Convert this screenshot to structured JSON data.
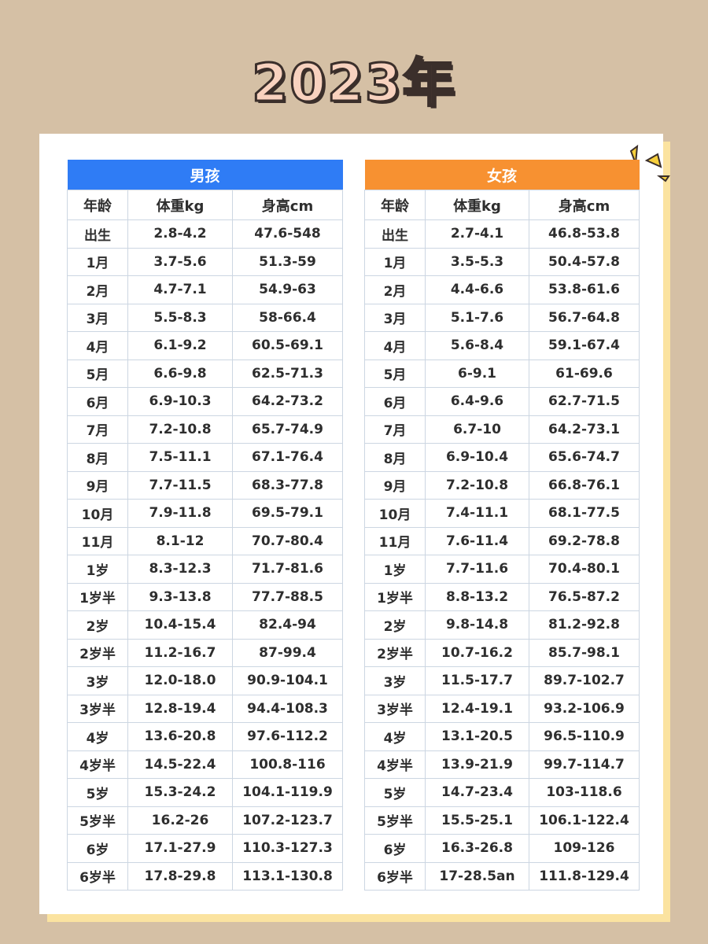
{
  "title": "2023年",
  "tables": [
    {
      "title": "男孩",
      "columns": [
        "年龄",
        "体重kg",
        "身高cm"
      ],
      "rows": [
        [
          "出生",
          "2.8-4.2",
          "47.6-548"
        ],
        [
          "1月",
          "3.7-5.6",
          "51.3-59"
        ],
        [
          "2月",
          "4.7-7.1",
          "54.9-63"
        ],
        [
          "3月",
          "5.5-8.3",
          "58-66.4"
        ],
        [
          "4月",
          "6.1-9.2",
          "60.5-69.1"
        ],
        [
          "5月",
          "6.6-9.8",
          "62.5-71.3"
        ],
        [
          "6月",
          "6.9-10.3",
          "64.2-73.2"
        ],
        [
          "7月",
          "7.2-10.8",
          "65.7-74.9"
        ],
        [
          "8月",
          "7.5-11.1",
          "67.1-76.4"
        ],
        [
          "9月",
          "7.7-11.5",
          "68.3-77.8"
        ],
        [
          "10月",
          "7.9-11.8",
          "69.5-79.1"
        ],
        [
          "11月",
          "8.1-12",
          "70.7-80.4"
        ],
        [
          "1岁",
          "8.3-12.3",
          "71.7-81.6"
        ],
        [
          "1岁半",
          "9.3-13.8",
          "77.7-88.5"
        ],
        [
          "2岁",
          "10.4-15.4",
          "82.4-94"
        ],
        [
          "2岁半",
          "11.2-16.7",
          "87-99.4"
        ],
        [
          "3岁",
          "12.0-18.0",
          "90.9-104.1"
        ],
        [
          "3岁半",
          "12.8-19.4",
          "94.4-108.3"
        ],
        [
          "4岁",
          "13.6-20.8",
          "97.6-112.2"
        ],
        [
          "4岁半",
          "14.5-22.4",
          "100.8-116"
        ],
        [
          "5岁",
          "15.3-24.2",
          "104.1-119.9"
        ],
        [
          "5岁半",
          "16.2-26",
          "107.2-123.7"
        ],
        [
          "6岁",
          "17.1-27.9",
          "110.3-127.3"
        ],
        [
          "6岁半",
          "17.8-29.8",
          "113.1-130.8"
        ]
      ]
    },
    {
      "title": "女孩",
      "columns": [
        "年龄",
        "体重kg",
        "身高cm"
      ],
      "rows": [
        [
          "出生",
          "2.7-4.1",
          "46.8-53.8"
        ],
        [
          "1月",
          "3.5-5.3",
          "50.4-57.8"
        ],
        [
          "2月",
          "4.4-6.6",
          "53.8-61.6"
        ],
        [
          "3月",
          "5.1-7.6",
          "56.7-64.8"
        ],
        [
          "4月",
          "5.6-8.4",
          "59.1-67.4"
        ],
        [
          "5月",
          "6-9.1",
          "61-69.6"
        ],
        [
          "6月",
          "6.4-9.6",
          "62.7-71.5"
        ],
        [
          "7月",
          "6.7-10",
          "64.2-73.1"
        ],
        [
          "8月",
          "6.9-10.4",
          "65.6-74.7"
        ],
        [
          "9月",
          "7.2-10.8",
          "66.8-76.1"
        ],
        [
          "10月",
          "7.4-11.1",
          "68.1-77.5"
        ],
        [
          "11月",
          "7.6-11.4",
          "69.2-78.8"
        ],
        [
          "1岁",
          "7.7-11.6",
          "70.4-80.1"
        ],
        [
          "1岁半",
          "8.8-13.2",
          "76.5-87.2"
        ],
        [
          "2岁",
          "9.8-14.8",
          "81.2-92.8"
        ],
        [
          "2岁半",
          "10.7-16.2",
          "85.7-98.1"
        ],
        [
          "3岁",
          "11.5-17.7",
          "89.7-102.7"
        ],
        [
          "3岁半",
          "12.4-19.1",
          "93.2-106.9"
        ],
        [
          "4岁",
          "13.1-20.5",
          "96.5-110.9"
        ],
        [
          "4岁半",
          "13.9-21.9",
          "99.7-114.7"
        ],
        [
          "5岁",
          "14.7-23.4",
          "103-118.6"
        ],
        [
          "5岁半",
          "15.5-25.1",
          "106.1-122.4"
        ],
        [
          "6岁",
          "16.3-26.8",
          "109-126"
        ],
        [
          "6岁半",
          "17-28.5an",
          "111.8-129.4"
        ]
      ]
    }
  ]
}
